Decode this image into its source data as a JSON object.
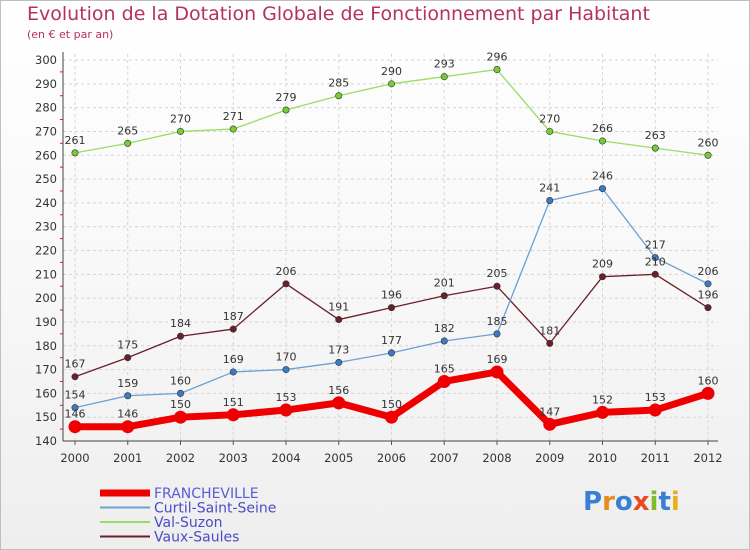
{
  "logo": "Proxiti",
  "chart_data": {
    "type": "line",
    "title": "Evolution de la Dotation Globale de Fonctionnement par Habitant",
    "subtitle": "(en € et par an)",
    "x": [
      "2000",
      "2001",
      "2002",
      "2003",
      "2004",
      "2005",
      "2006",
      "2007",
      "2008",
      "2009",
      "2010",
      "2011",
      "2012"
    ],
    "ylim": [
      140,
      300
    ],
    "yticks": [
      140,
      150,
      160,
      170,
      180,
      190,
      200,
      210,
      220,
      230,
      240,
      250,
      260,
      270,
      280,
      290,
      300
    ],
    "series": [
      {
        "name": "FRANCHEVILLE",
        "values": [
          146,
          146,
          150,
          151,
          153,
          156,
          150,
          165,
          169,
          147,
          152,
          153,
          160
        ],
        "color": "#ee0000",
        "marker": "#ee0000"
      },
      {
        "name": "Curtil-Saint-Seine",
        "values": [
          154,
          159,
          160,
          169,
          170,
          173,
          177,
          182,
          185,
          241,
          246,
          217,
          206
        ],
        "color": "#6ca0cf",
        "marker": "#3c7bc0"
      },
      {
        "name": "Val-Suzon",
        "values": [
          261,
          265,
          270,
          271,
          279,
          285,
          290,
          293,
          296,
          270,
          266,
          263,
          260
        ],
        "color": "#99dd66",
        "marker": "#77cc33"
      },
      {
        "name": "Vaux-Saules",
        "values": [
          167,
          175,
          184,
          187,
          206,
          191,
          196,
          201,
          205,
          181,
          209,
          210,
          196
        ],
        "color": "#6b1f2a",
        "marker": "#6b1f2a"
      }
    ]
  }
}
